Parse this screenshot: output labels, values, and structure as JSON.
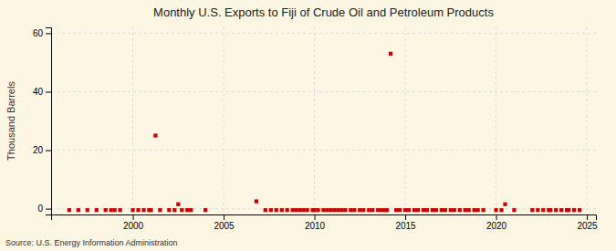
{
  "chart_data": {
    "type": "scatter",
    "title": "Monthly U.S. Exports to Fiji of Crude Oil and Petroleum Products",
    "ylabel": "Thousand Barrels",
    "annotations": [
      "Source: U.S. Energy Information Administration"
    ],
    "color": "#cc0000",
    "marker": "square",
    "grid": true,
    "xlim": [
      1995.5,
      2025.5
    ],
    "ylim": [
      -2,
      62
    ],
    "xticks": [
      2000,
      2005,
      2010,
      2015,
      2020,
      2025
    ],
    "yticks": [
      0,
      20,
      40,
      60
    ],
    "x": [
      1996.5,
      1997.0,
      1997.5,
      1998.0,
      1998.5,
      1998.8,
      1999.0,
      1999.3,
      2000.0,
      2000.3,
      2000.6,
      2000.9,
      2001.0,
      2001.25,
      2001.5,
      2002.0,
      2002.3,
      2002.5,
      2002.7,
      2003.0,
      2003.2,
      2004.0,
      2006.8,
      2007.3,
      2007.6,
      2007.9,
      2008.2,
      2008.5,
      2008.8,
      2009.0,
      2009.2,
      2009.4,
      2009.6,
      2009.9,
      2010.0,
      2010.2,
      2010.5,
      2010.7,
      2010.9,
      2011.1,
      2011.3,
      2011.5,
      2011.7,
      2012.0,
      2012.2,
      2012.5,
      2012.7,
      2013.0,
      2013.2,
      2013.5,
      2013.7,
      2013.9,
      2014.0,
      2014.2,
      2014.5,
      2014.7,
      2015.0,
      2015.2,
      2015.5,
      2015.7,
      2016.0,
      2016.2,
      2016.5,
      2016.7,
      2017.0,
      2017.2,
      2017.5,
      2017.7,
      2018.0,
      2018.3,
      2018.5,
      2018.8,
      2019.0,
      2019.3,
      2020.0,
      2020.3,
      2020.5,
      2021.0,
      2022.0,
      2022.3,
      2022.6,
      2022.9,
      2023.0,
      2023.3,
      2023.6,
      2023.9,
      2024.0,
      2024.3,
      2024.6
    ],
    "values": [
      -0.5,
      -0.5,
      -0.5,
      -0.5,
      -0.5,
      -0.5,
      -0.5,
      -0.5,
      -0.5,
      -0.5,
      -0.5,
      -0.5,
      -0.5,
      25,
      -0.5,
      -0.5,
      -0.5,
      1.5,
      -0.5,
      -0.5,
      -0.5,
      -0.5,
      2.5,
      -0.5,
      -0.5,
      -0.5,
      -0.5,
      -0.5,
      -0.5,
      -0.5,
      -0.5,
      -0.5,
      -0.5,
      -0.5,
      -0.5,
      -0.5,
      -0.5,
      -0.5,
      -0.5,
      -0.5,
      -0.5,
      -0.5,
      -0.5,
      -0.5,
      -0.5,
      -0.5,
      -0.5,
      -0.5,
      -0.5,
      -0.5,
      -0.5,
      -0.5,
      -0.5,
      53,
      -0.5,
      -0.5,
      -0.5,
      -0.5,
      -0.5,
      -0.5,
      -0.5,
      -0.5,
      -0.5,
      -0.5,
      -0.5,
      -0.5,
      -0.5,
      -0.5,
      -0.5,
      -0.5,
      -0.5,
      -0.5,
      -0.5,
      -0.5,
      -0.5,
      -0.5,
      1.5,
      -0.5,
      -0.5,
      -0.5,
      -0.5,
      -0.5,
      -0.5,
      -0.5,
      -0.5,
      -0.5,
      -0.5,
      -0.5,
      -0.5
    ]
  }
}
